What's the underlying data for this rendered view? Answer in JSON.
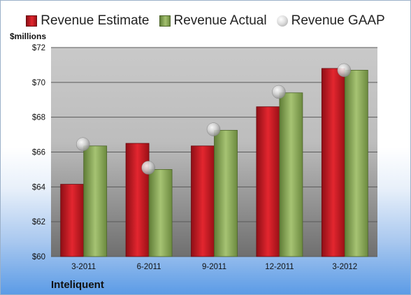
{
  "chart_data": {
    "type": "bar",
    "categories": [
      "3-2011",
      "6-2011",
      "9-2011",
      "12-2011",
      "3-2012"
    ],
    "series": [
      {
        "name": "Revenue Estimate",
        "kind": "bar",
        "color": "#c8161e",
        "values": [
          64.15,
          66.5,
          66.35,
          68.6,
          70.8
        ]
      },
      {
        "name": "Revenue Actual",
        "kind": "bar",
        "color": "#8aa85a",
        "values": [
          66.35,
          65.0,
          67.25,
          69.4,
          70.7
        ]
      },
      {
        "name": "Revenue GAAP",
        "kind": "marker",
        "color": "#c0c0c0",
        "values": [
          66.45,
          65.1,
          67.3,
          69.45,
          70.7
        ]
      }
    ],
    "ylabel": "$millions",
    "ylim": [
      60,
      72
    ],
    "yticks": [
      60,
      62,
      64,
      66,
      68,
      70,
      72
    ],
    "ytick_labels": [
      "$60",
      "$62",
      "$64",
      "$66",
      "$68",
      "$70",
      "$72"
    ],
    "grid": true,
    "legend_position": "top",
    "company": "Inteliquent"
  }
}
